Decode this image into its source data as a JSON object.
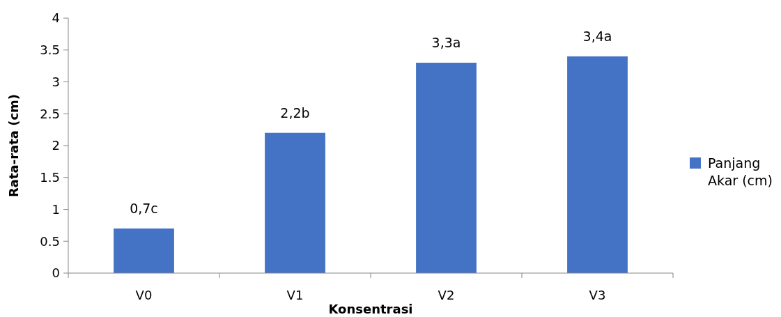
{
  "chart_data": {
    "type": "bar",
    "xlabel": "Konsentrasi",
    "ylabel": "Rata-rata (cm)",
    "categories": [
      "V0",
      "V1",
      "V2",
      "V3"
    ],
    "series": [
      {
        "name": "Panjang Akar (cm)",
        "color": "#4472c4",
        "values": [
          0.7,
          2.2,
          3.3,
          3.4
        ],
        "value_labels": [
          "0,7c",
          "2,2b",
          "3,3a",
          "3,4a"
        ]
      }
    ],
    "ylim": [
      0,
      4
    ],
    "yticks": [
      0,
      0.5,
      1,
      1.5,
      2,
      2.5,
      3,
      3.5,
      4
    ],
    "legend": "right",
    "grid": false
  }
}
